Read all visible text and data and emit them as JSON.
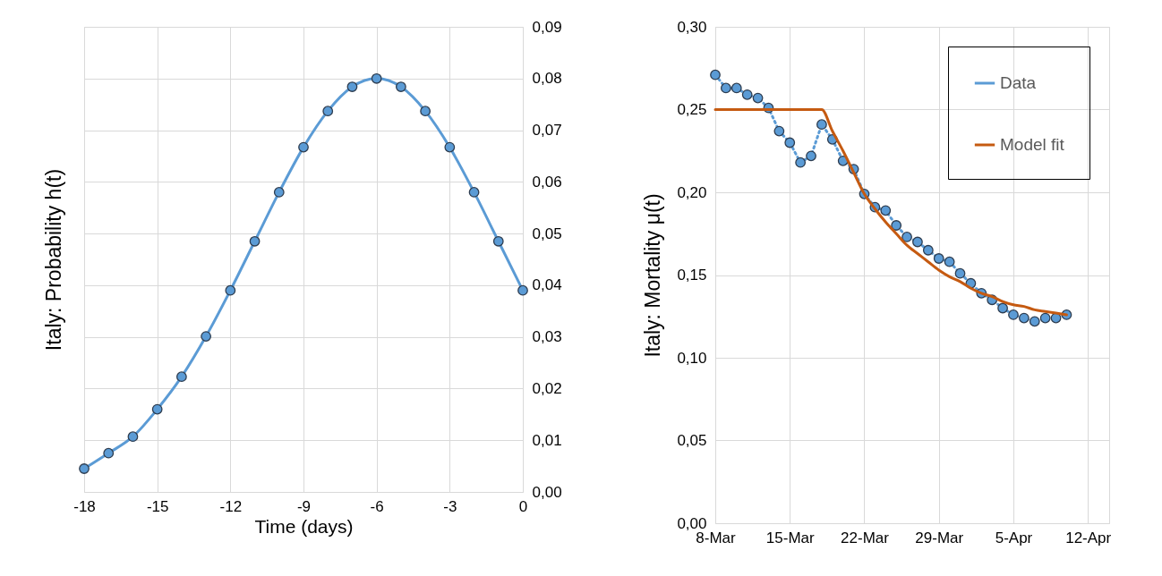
{
  "chart_data": [
    {
      "type": "line",
      "xlabel": "Time (days)",
      "ylabel": "Italy: Probability  h(t)",
      "x": [
        -18,
        -17,
        -16,
        -15,
        -14,
        -13,
        -12,
        -11,
        -10,
        -9,
        -8,
        -7,
        -6,
        -5,
        -4,
        -3,
        -2,
        -1,
        0
      ],
      "series": [
        {
          "color": "#5b9bd5",
          "axis": "y2",
          "values": [
            0.0045,
            0.0075,
            0.0107,
            0.016,
            0.0223,
            0.0301,
            0.039,
            0.0485,
            0.058,
            0.0667,
            0.0737,
            0.0784,
            0.08,
            0.0784,
            0.0737,
            0.0667,
            0.058,
            0.0485,
            0.039
          ]
        }
      ],
      "xlim": [
        -18,
        0
      ],
      "xticks": [
        -18,
        -15,
        -12,
        -9,
        -6,
        -3,
        0
      ],
      "y2lim": [
        0,
        0.09
      ],
      "y2ticks": [
        {
          "value": 0,
          "label": "0,00"
        },
        {
          "value": 0.01,
          "label": "0,01"
        },
        {
          "value": 0.02,
          "label": "0,02"
        },
        {
          "value": 0.03,
          "label": "0,03"
        },
        {
          "value": 0.04,
          "label": "0,04"
        },
        {
          "value": 0.05,
          "label": "0,05"
        },
        {
          "value": 0.06,
          "label": "0,06"
        },
        {
          "value": 0.07,
          "label": "0,07"
        },
        {
          "value": 0.08,
          "label": "0,08"
        },
        {
          "value": 0.09,
          "label": "0,09"
        }
      ],
      "grid": true,
      "marker": "circle",
      "line_style": "solid"
    },
    {
      "type": "line",
      "ylabel": "Italy: Mortality  μ(t)",
      "x": [
        "--03-08",
        "--03-09",
        "--03-10",
        "--03-11",
        "--03-12",
        "--03-13",
        "--03-14",
        "--03-15",
        "--03-16",
        "--03-17",
        "--03-18",
        "--03-19",
        "--03-20",
        "--03-21",
        "--03-22",
        "--03-23",
        "--03-24",
        "--03-25",
        "--03-26",
        "--03-27",
        "--03-28",
        "--03-29",
        "--03-30",
        "--03-31",
        "--04-01",
        "--04-02",
        "--04-03",
        "--04-04",
        "--04-05",
        "--04-06",
        "--04-07",
        "--04-08",
        "--04-09",
        "--04-10"
      ],
      "series": [
        {
          "name": "Data",
          "color": "#5b9bd5",
          "marker": "circle",
          "line_style": "dotted",
          "values": [
            0.271,
            0.263,
            0.263,
            0.259,
            0.257,
            0.251,
            0.237,
            0.23,
            0.218,
            0.222,
            0.241,
            0.232,
            0.219,
            0.214,
            0.199,
            0.191,
            0.189,
            0.18,
            0.173,
            0.17,
            0.165,
            0.16,
            0.158,
            0.151,
            0.145,
            0.139,
            0.135,
            0.13,
            0.126,
            0.124,
            0.122,
            0.124,
            0.124,
            0.126
          ]
        },
        {
          "name": "Model fit",
          "color": "#c55a11",
          "marker": "none",
          "line_style": "solid",
          "values": [
            0.25,
            0.25,
            0.25,
            0.25,
            0.25,
            0.25,
            0.25,
            0.25,
            0.25,
            0.25,
            0.25,
            0.237,
            0.225,
            0.212,
            0.199,
            0.19,
            0.182,
            0.175,
            0.168,
            0.163,
            0.158,
            0.153,
            0.149,
            0.146,
            0.142,
            0.139,
            0.137,
            0.134,
            0.132,
            0.131,
            0.129,
            0.128,
            0.127,
            0.126
          ]
        }
      ],
      "xlim": [
        "--03-08",
        "--04-14"
      ],
      "xticks": [
        {
          "value": "--03-08",
          "label": "8-Mar"
        },
        {
          "value": "--03-15",
          "label": "15-Mar"
        },
        {
          "value": "--03-22",
          "label": "22-Mar"
        },
        {
          "value": "--03-29",
          "label": "29-Mar"
        },
        {
          "value": "--04-05",
          "label": "5-Apr"
        },
        {
          "value": "--04-12",
          "label": "12-Apr"
        }
      ],
      "ylim": [
        0,
        0.3
      ],
      "yticks": [
        {
          "value": 0,
          "label": "0,00"
        },
        {
          "value": 0.05,
          "label": "0,05"
        },
        {
          "value": 0.1,
          "label": "0,10"
        },
        {
          "value": 0.15,
          "label": "0,15"
        },
        {
          "value": 0.2,
          "label": "0,20"
        },
        {
          "value": 0.25,
          "label": "0,25"
        },
        {
          "value": 0.3,
          "label": "0,30"
        }
      ],
      "grid": true,
      "legend": "top right"
    }
  ]
}
